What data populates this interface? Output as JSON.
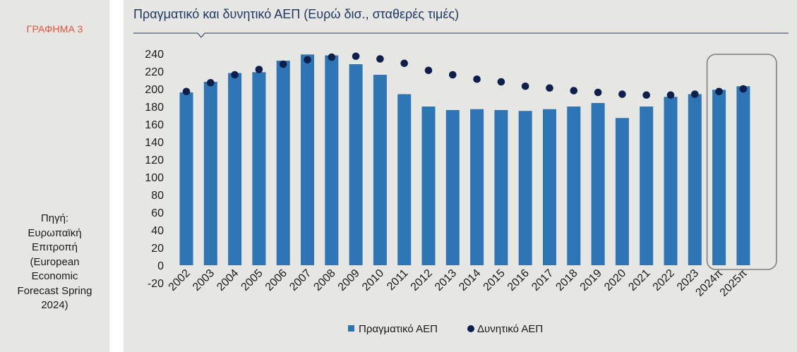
{
  "sidebar": {
    "chart_label": "ΓΡΑΦΗΜΑ 3",
    "source_lines": [
      "Πηγή:",
      "Ευρωπαϊκή",
      "Επιτροπή",
      "(European",
      "Economic",
      "Forecast Spring",
      "2024)"
    ]
  },
  "chart_data": {
    "type": "bar",
    "title": "Πραγματικό και δυνητικό ΑΕΠ  (Ευρώ δισ., σταθερές τιμές)",
    "categories": [
      "2002",
      "2003",
      "2004",
      "2005",
      "2006",
      "2007",
      "2008",
      "2009",
      "2010",
      "2011",
      "2012",
      "2013",
      "2014",
      "2015",
      "2016",
      "2017",
      "2018",
      "2019",
      "2020",
      "2021",
      "2022",
      "2023",
      "2024π",
      "2025π"
    ],
    "series": [
      {
        "name": "Πραγματικό ΑΕΠ",
        "kind": "bar",
        "color": "#2e75b6",
        "values": [
          196,
          208,
          218,
          219,
          232,
          239,
          238,
          228,
          216,
          194,
          180,
          176,
          177,
          176,
          175,
          177,
          180,
          184,
          167,
          180,
          191,
          194,
          199,
          203
        ]
      },
      {
        "name": "Δυνητικό ΑΕΠ",
        "kind": "marker",
        "color": "#0d1f4c",
        "values": [
          197,
          207,
          216,
          222,
          228,
          233,
          236,
          237,
          234,
          229,
          221,
          216,
          211,
          208,
          203,
          201,
          198,
          196,
          194,
          193,
          193,
          194,
          197,
          200
        ]
      }
    ],
    "ylim": [
      -20,
      240
    ],
    "yticks": [
      -20,
      0,
      20,
      40,
      60,
      80,
      100,
      120,
      140,
      160,
      180,
      200,
      220,
      240
    ],
    "legend": "bottom-center",
    "highlight_categories": [
      "2024π",
      "2025π"
    ]
  }
}
